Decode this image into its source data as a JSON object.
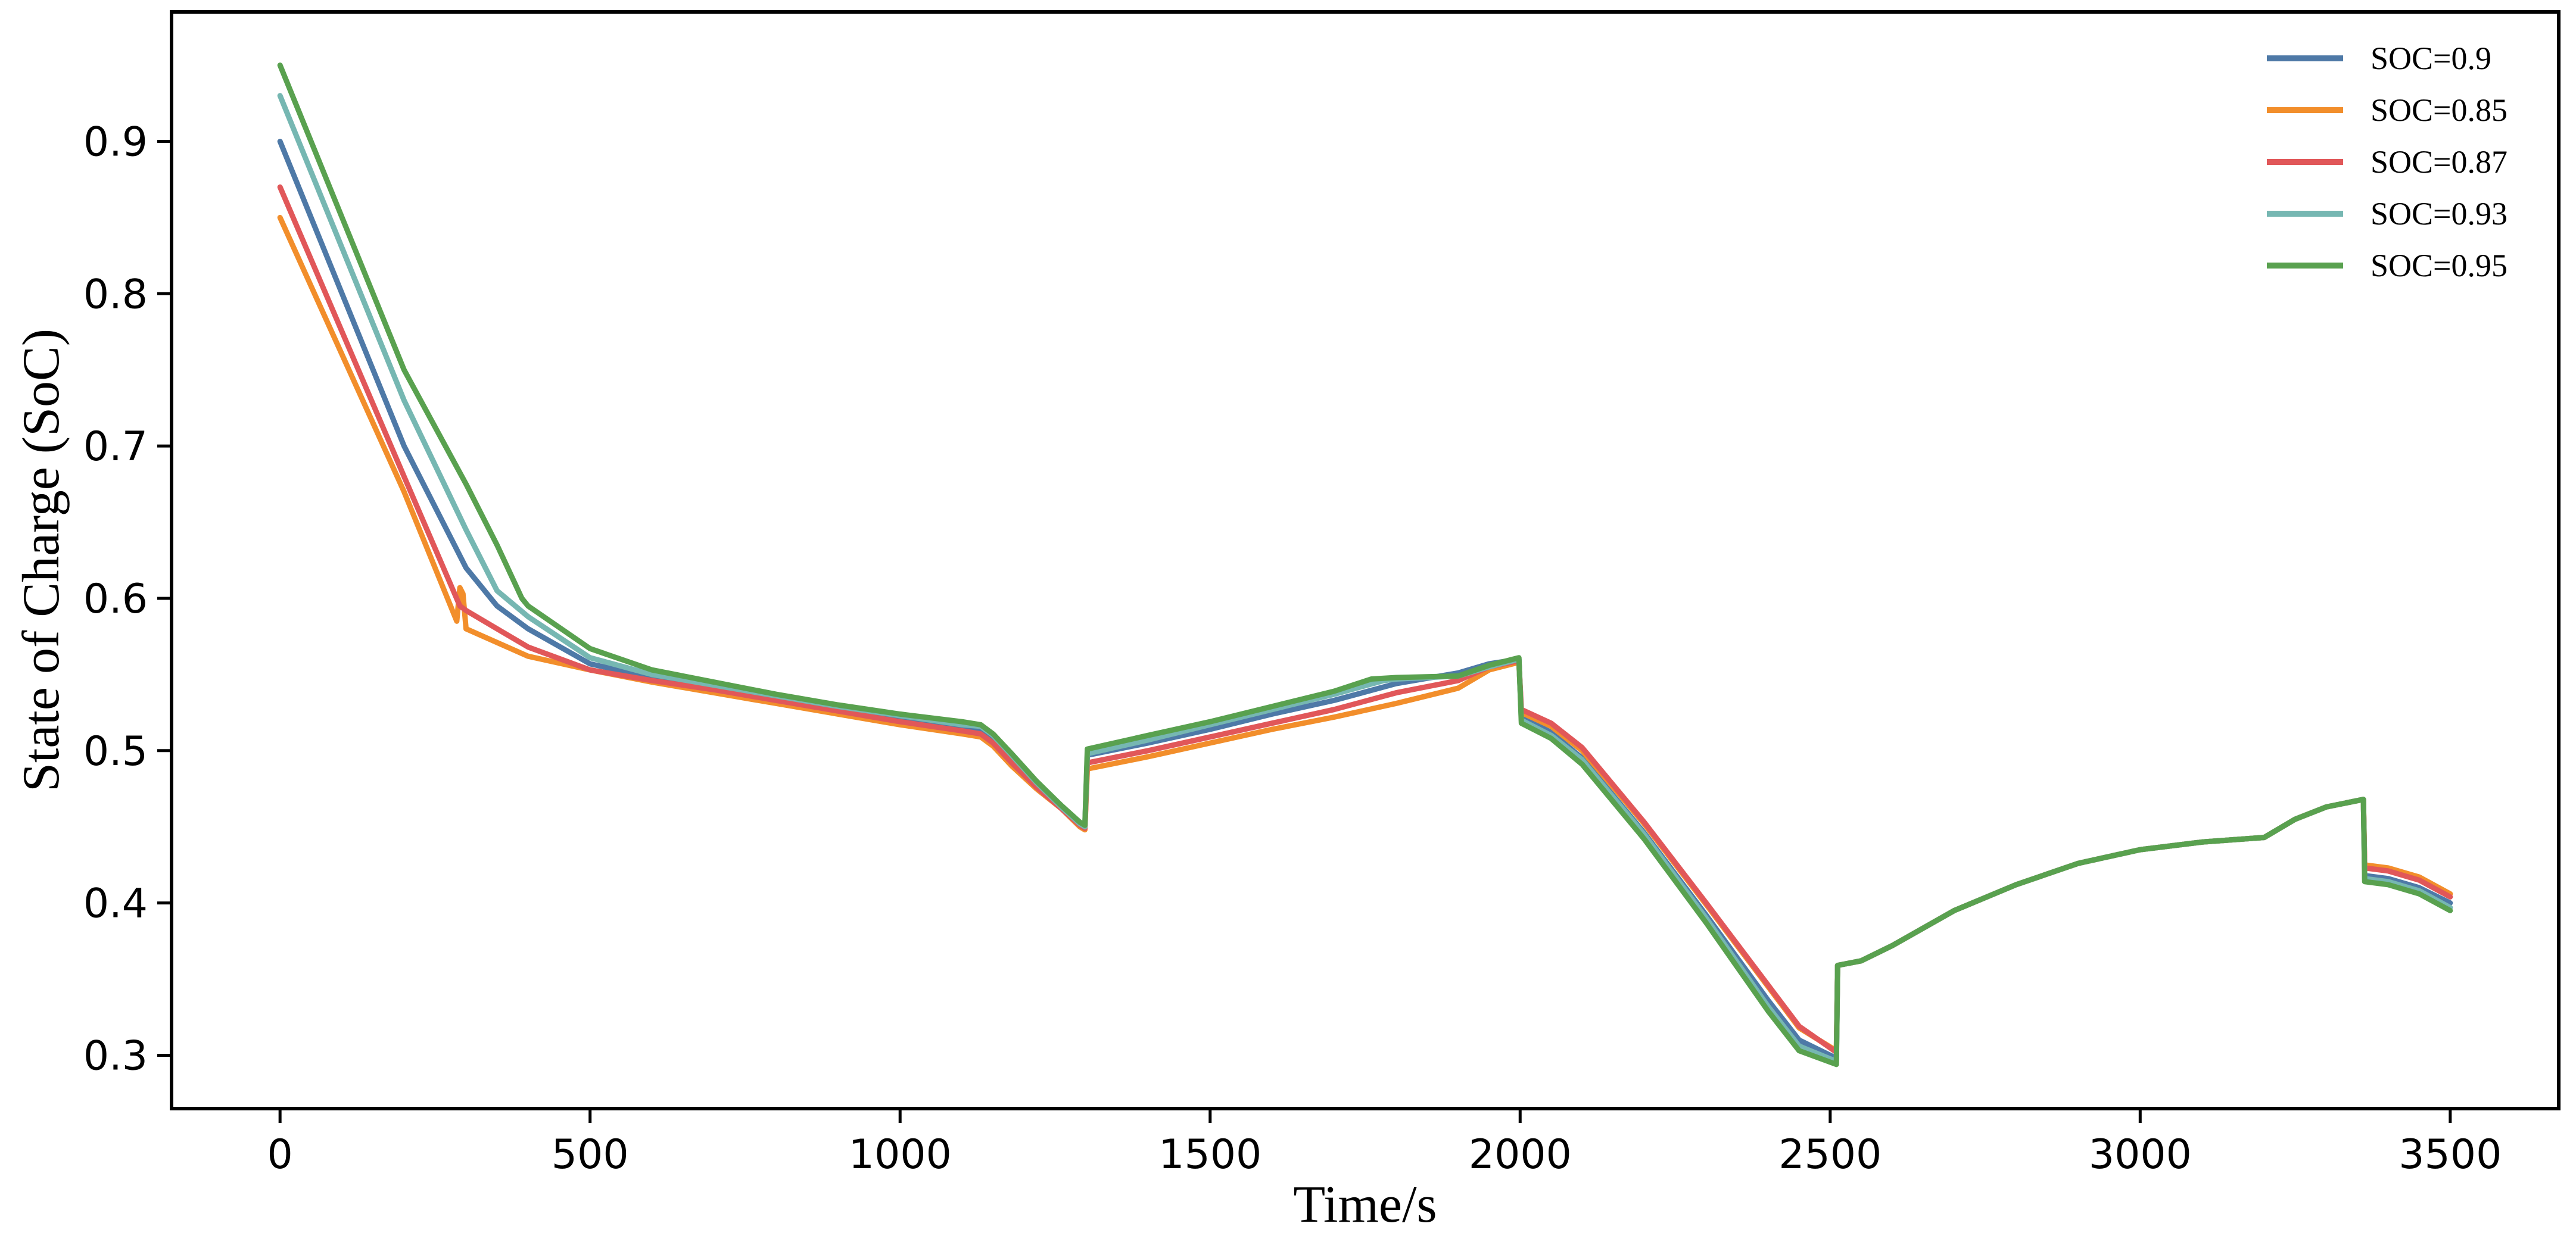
{
  "chart_data": {
    "type": "line",
    "title": "",
    "xlabel": "Time/s",
    "ylabel": "State of Charge (SoC)",
    "xlim": [
      -175,
      3675
    ],
    "ylim": [
      0.265,
      0.985
    ],
    "xticks": [
      0,
      500,
      1000,
      1500,
      2000,
      2500,
      3000,
      3500
    ],
    "yticks": [
      0.3,
      0.4,
      0.5,
      0.6,
      0.7,
      0.8,
      0.9
    ],
    "grid": false,
    "legend_position": "top-right",
    "series": [
      {
        "name": "SOC=0.9",
        "color": "#4e79a7",
        "x": [
          0,
          100,
          200,
          300,
          350,
          400,
          500,
          600,
          700,
          800,
          900,
          1000,
          1100,
          1130,
          1150,
          1180,
          1220,
          1260,
          1290,
          1298,
          1302,
          1400,
          1500,
          1600,
          1700,
          1800,
          1900,
          1950,
          1998,
          2002,
          2050,
          2100,
          2200,
          2300,
          2400,
          2450,
          2510,
          2512,
          2550,
          2600,
          2700,
          2800,
          2900,
          3000,
          3100,
          3200,
          3250,
          3300,
          3360,
          3362,
          3400,
          3450,
          3500
        ],
        "y": [
          0.9,
          0.8,
          0.7,
          0.62,
          0.595,
          0.58,
          0.557,
          0.548,
          0.542,
          0.535,
          0.528,
          0.522,
          0.516,
          0.514,
          0.508,
          0.495,
          0.478,
          0.462,
          0.452,
          0.45,
          0.497,
          0.505,
          0.514,
          0.524,
          0.533,
          0.544,
          0.551,
          0.557,
          0.56,
          0.522,
          0.512,
          0.495,
          0.446,
          0.392,
          0.336,
          0.31,
          0.298,
          0.359,
          0.362,
          0.372,
          0.395,
          0.412,
          0.426,
          0.435,
          0.44,
          0.443,
          0.455,
          0.463,
          0.468,
          0.418,
          0.416,
          0.41,
          0.4
        ]
      },
      {
        "name": "SOC=0.85",
        "color": "#f28e2b",
        "x": [
          0,
          100,
          200,
          285,
          290,
          295,
          300,
          400,
          500,
          600,
          700,
          800,
          900,
          1000,
          1100,
          1130,
          1150,
          1180,
          1220,
          1260,
          1290,
          1298,
          1302,
          1400,
          1500,
          1600,
          1700,
          1800,
          1900,
          1950,
          1998,
          2002,
          2050,
          2100,
          2200,
          2300,
          2400,
          2450,
          2510,
          2512,
          2550,
          2600,
          2700,
          2800,
          2900,
          3000,
          3100,
          3200,
          3250,
          3300,
          3360,
          3362,
          3400,
          3450,
          3500
        ],
        "y": [
          0.85,
          0.76,
          0.67,
          0.585,
          0.607,
          0.603,
          0.58,
          0.562,
          0.553,
          0.545,
          0.538,
          0.531,
          0.524,
          0.517,
          0.511,
          0.509,
          0.503,
          0.49,
          0.475,
          0.462,
          0.45,
          0.448,
          0.488,
          0.496,
          0.505,
          0.514,
          0.522,
          0.531,
          0.541,
          0.553,
          0.558,
          0.525,
          0.516,
          0.5,
          0.452,
          0.399,
          0.345,
          0.318,
          0.303,
          0.359,
          0.362,
          0.372,
          0.395,
          0.412,
          0.426,
          0.435,
          0.44,
          0.443,
          0.455,
          0.463,
          0.468,
          0.425,
          0.423,
          0.417,
          0.406
        ]
      },
      {
        "name": "SOC=0.87",
        "color": "#e15759",
        "x": [
          0,
          100,
          200,
          290,
          300,
          350,
          400,
          500,
          600,
          700,
          800,
          900,
          1000,
          1100,
          1130,
          1150,
          1180,
          1220,
          1260,
          1290,
          1298,
          1302,
          1400,
          1500,
          1600,
          1700,
          1800,
          1900,
          1950,
          1998,
          2002,
          2050,
          2100,
          2200,
          2300,
          2400,
          2450,
          2510,
          2512,
          2550,
          2600,
          2700,
          2800,
          2900,
          3000,
          3100,
          3200,
          3250,
          3300,
          3360,
          3362,
          3400,
          3450,
          3500
        ],
        "y": [
          0.87,
          0.775,
          0.68,
          0.595,
          0.592,
          0.58,
          0.568,
          0.553,
          0.546,
          0.54,
          0.533,
          0.526,
          0.519,
          0.513,
          0.511,
          0.505,
          0.492,
          0.476,
          0.462,
          0.451,
          0.449,
          0.492,
          0.5,
          0.509,
          0.518,
          0.527,
          0.538,
          0.546,
          0.555,
          0.559,
          0.527,
          0.518,
          0.502,
          0.453,
          0.4,
          0.346,
          0.319,
          0.302,
          0.359,
          0.362,
          0.372,
          0.395,
          0.412,
          0.426,
          0.435,
          0.44,
          0.443,
          0.455,
          0.463,
          0.468,
          0.423,
          0.421,
          0.415,
          0.404
        ]
      },
      {
        "name": "SOC=0.93",
        "color": "#76b7b2",
        "x": [
          0,
          100,
          200,
          300,
          350,
          400,
          500,
          600,
          700,
          800,
          900,
          1000,
          1100,
          1130,
          1150,
          1180,
          1220,
          1260,
          1290,
          1298,
          1302,
          1400,
          1500,
          1600,
          1700,
          1780,
          1800,
          1900,
          1950,
          1998,
          2002,
          2050,
          2100,
          2200,
          2300,
          2400,
          2450,
          2510,
          2512,
          2550,
          2600,
          2700,
          2800,
          2900,
          3000,
          3100,
          3200,
          3250,
          3300,
          3360,
          3362,
          3400,
          3450,
          3500
        ],
        "y": [
          0.93,
          0.83,
          0.73,
          0.645,
          0.605,
          0.588,
          0.561,
          0.55,
          0.543,
          0.536,
          0.529,
          0.523,
          0.517,
          0.516,
          0.51,
          0.497,
          0.479,
          0.463,
          0.452,
          0.45,
          0.498,
          0.507,
          0.517,
          0.527,
          0.537,
          0.546,
          0.547,
          0.549,
          0.555,
          0.56,
          0.52,
          0.51,
          0.494,
          0.445,
          0.39,
          0.332,
          0.306,
          0.296,
          0.359,
          0.362,
          0.372,
          0.395,
          0.412,
          0.426,
          0.435,
          0.44,
          0.443,
          0.455,
          0.463,
          0.468,
          0.416,
          0.414,
          0.408,
          0.397
        ]
      },
      {
        "name": "SOC=0.95",
        "color": "#59a14f",
        "x": [
          0,
          100,
          200,
          300,
          350,
          390,
          400,
          500,
          600,
          700,
          800,
          900,
          1000,
          1100,
          1130,
          1150,
          1180,
          1220,
          1260,
          1290,
          1298,
          1302,
          1400,
          1500,
          1600,
          1700,
          1760,
          1800,
          1900,
          1950,
          1998,
          2002,
          2050,
          2100,
          2200,
          2300,
          2400,
          2450,
          2510,
          2512,
          2550,
          2600,
          2700,
          2800,
          2900,
          3000,
          3100,
          3200,
          3250,
          3300,
          3360,
          3362,
          3400,
          3450,
          3500
        ],
        "y": [
          0.95,
          0.85,
          0.75,
          0.675,
          0.635,
          0.6,
          0.595,
          0.567,
          0.553,
          0.545,
          0.537,
          0.53,
          0.524,
          0.519,
          0.517,
          0.511,
          0.498,
          0.48,
          0.464,
          0.453,
          0.451,
          0.501,
          0.51,
          0.519,
          0.529,
          0.539,
          0.547,
          0.548,
          0.549,
          0.556,
          0.561,
          0.518,
          0.508,
          0.491,
          0.442,
          0.387,
          0.329,
          0.303,
          0.294,
          0.359,
          0.362,
          0.372,
          0.395,
          0.412,
          0.426,
          0.435,
          0.44,
          0.443,
          0.455,
          0.463,
          0.468,
          0.414,
          0.412,
          0.406,
          0.395
        ]
      }
    ]
  }
}
